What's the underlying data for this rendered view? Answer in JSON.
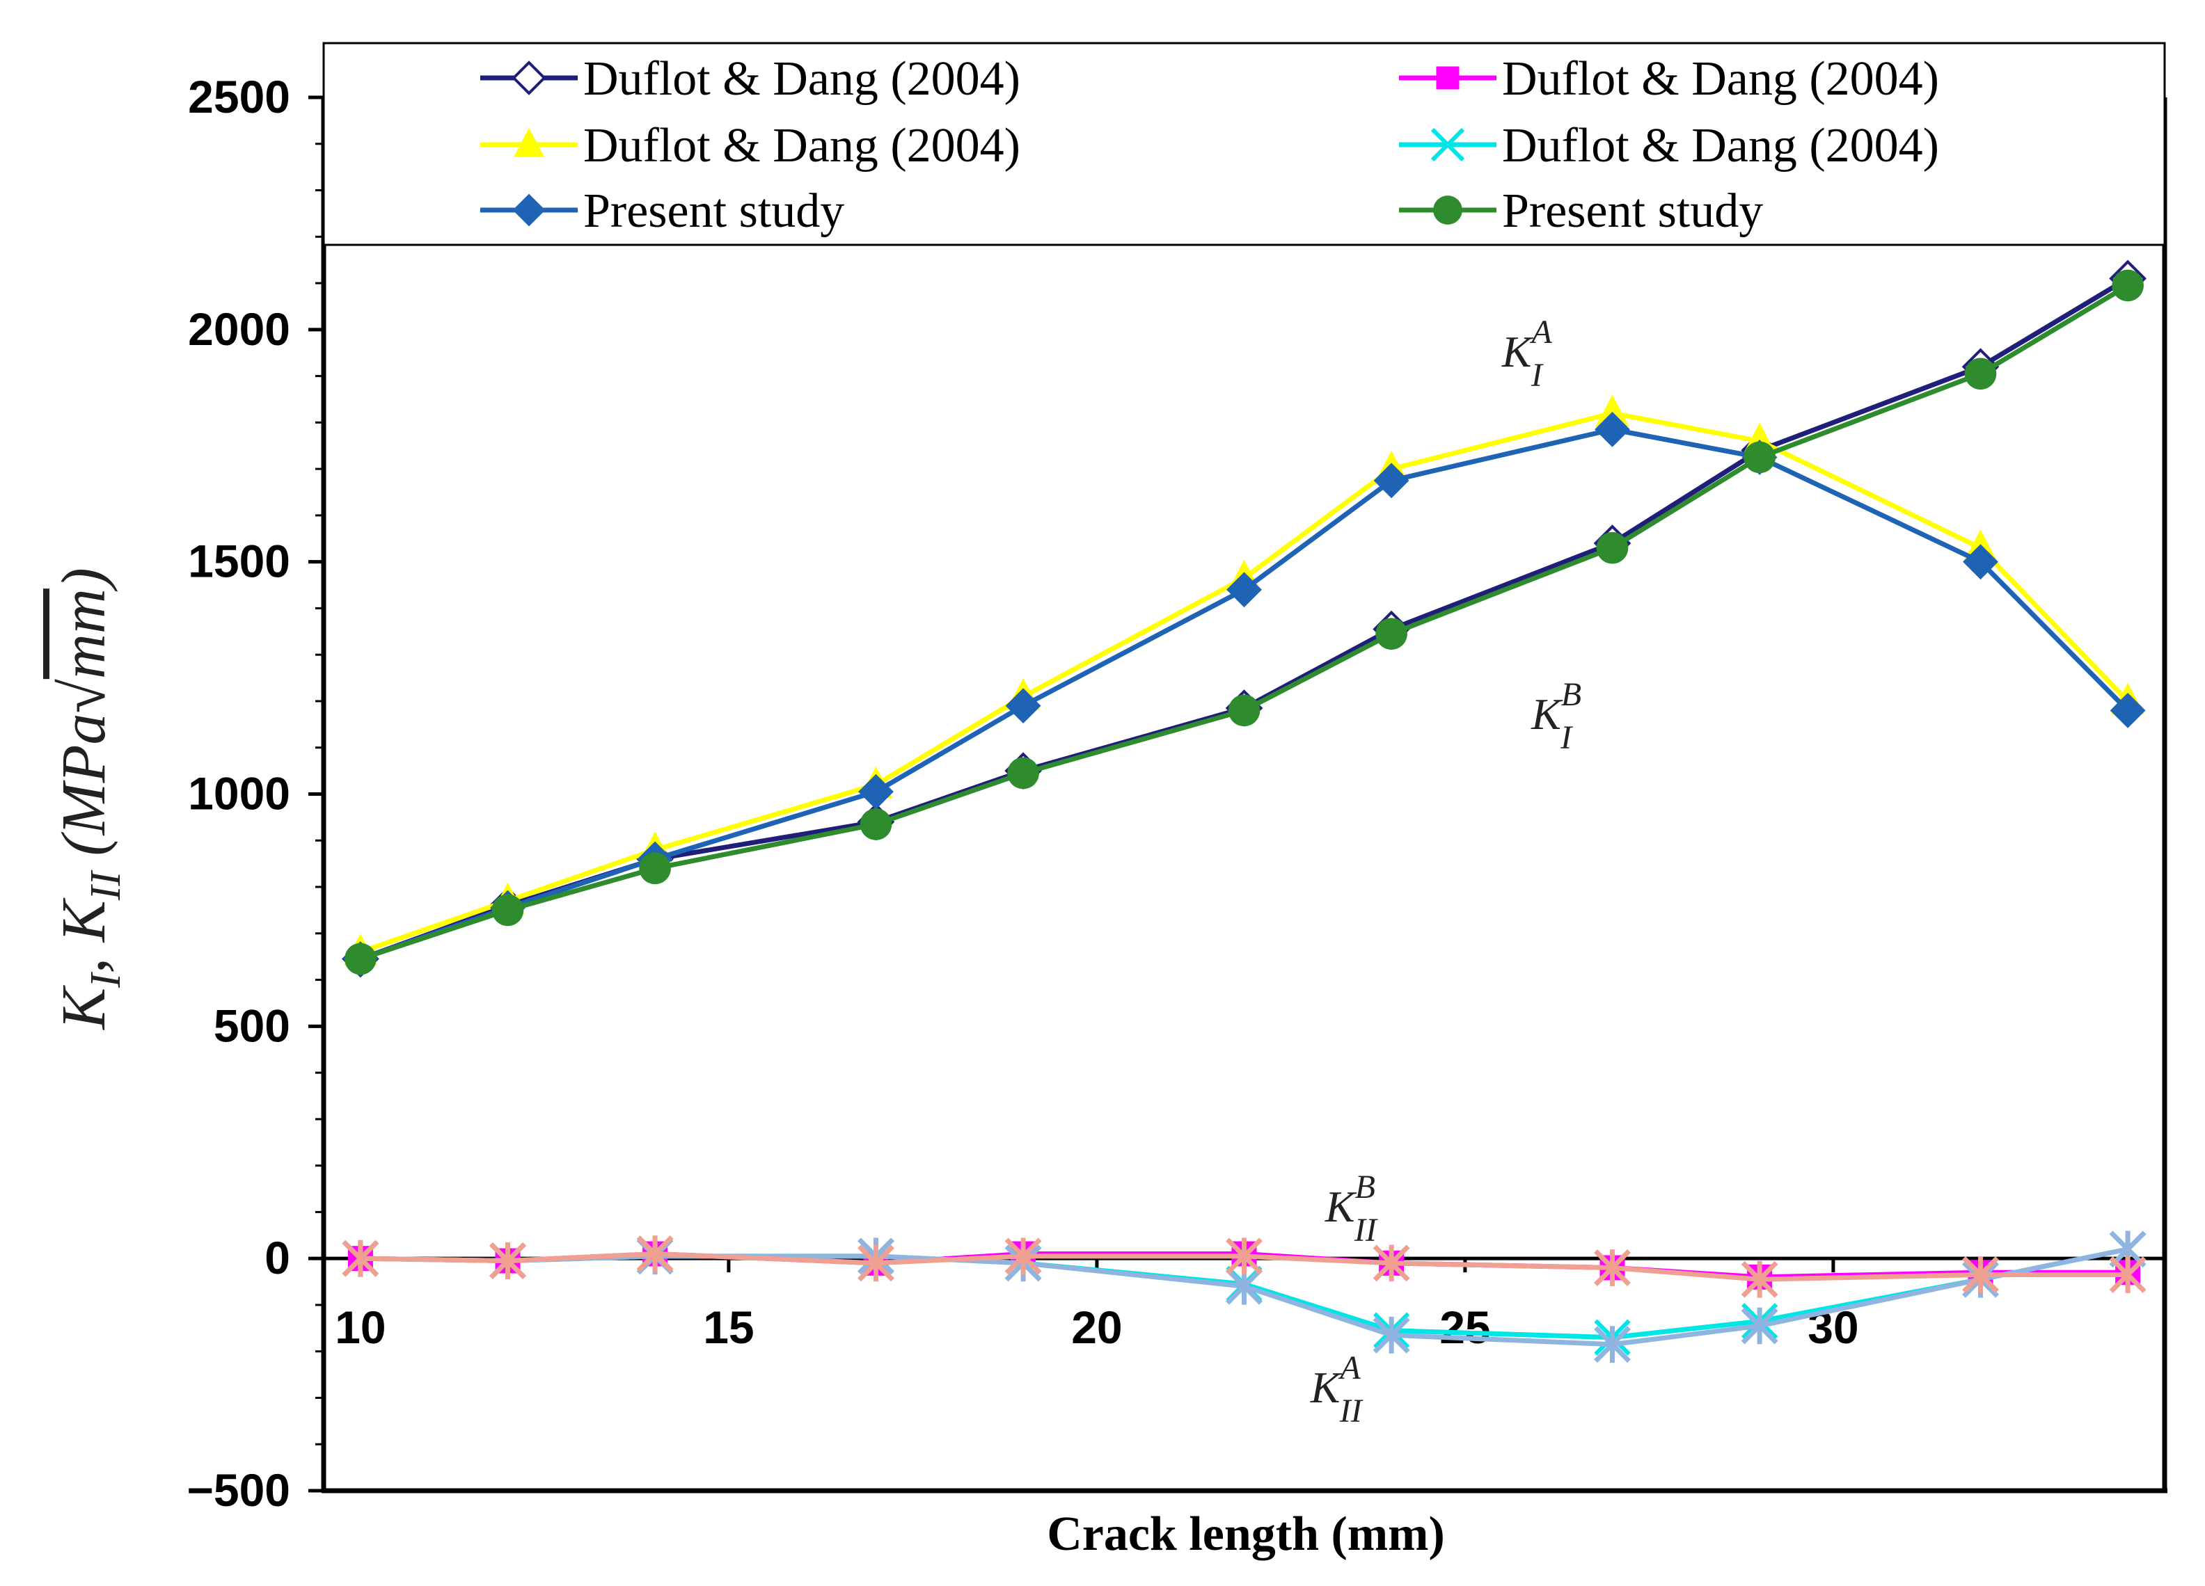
{
  "chart_data": {
    "type": "line",
    "xlabel": "Crack length (mm)",
    "ylabel": "K_I, K_II (MPa√mm)",
    "ylabel_parts": {
      "k1": "K",
      "s1": "I",
      "k2": "K",
      "s2": "II",
      "unit": "MPa",
      "unit_root": "mm"
    },
    "xlim": [
      9.5,
      34.5
    ],
    "ylim": [
      -500,
      2500
    ],
    "xticks": [
      10,
      15,
      20,
      25,
      30
    ],
    "yticks": [
      -500,
      0,
      500,
      1000,
      1500,
      2000,
      2500
    ],
    "ytick_labels": [
      "−500",
      "0",
      "500",
      "1000",
      "1500",
      "2000",
      "2500"
    ],
    "x": [
      10,
      12,
      14,
      17,
      19,
      22,
      24,
      27,
      29,
      32,
      34
    ],
    "series": [
      {
        "name": "Duflot & Dang (2004)",
        "group": "K_I^B",
        "color": "#1f1f7a",
        "marker": "diamond-open",
        "values": [
          645,
          760,
          860,
          940,
          1050,
          1185,
          1355,
          1540,
          1740,
          1920,
          2110
        ]
      },
      {
        "name": "Duflot & Dang (2004)",
        "group": "K_II^B",
        "color": "#ff00ff",
        "marker": "square",
        "values": [
          0,
          -5,
          10,
          -10,
          10,
          10,
          -10,
          -20,
          -40,
          -30,
          -30
        ]
      },
      {
        "name": "Duflot & Dang (2004)",
        "group": "K_I^A",
        "color": "#ffff00",
        "marker": "triangle",
        "values": [
          660,
          770,
          880,
          1020,
          1210,
          1465,
          1700,
          1820,
          1760,
          1530,
          1200
        ]
      },
      {
        "name": "Duflot & Dang (2004)",
        "group": "K_II^A",
        "color": "#00e5e5",
        "marker": "x",
        "values": [
          0,
          -5,
          5,
          5,
          -10,
          -55,
          -155,
          -170,
          -135,
          -45,
          20
        ]
      },
      {
        "name": "Present study",
        "group": "K_I^A",
        "color": "#1f64b4",
        "marker": "diamond",
        "values": [
          645,
          755,
          860,
          1005,
          1190,
          1440,
          1675,
          1785,
          1725,
          1500,
          1180
        ]
      },
      {
        "name": "Present study",
        "group": "K_I^B",
        "color": "#2e8b2e",
        "marker": "circle",
        "values": [
          645,
          750,
          840,
          935,
          1045,
          1180,
          1345,
          1530,
          1725,
          1905,
          2095
        ]
      },
      {
        "name": "",
        "group": "K_II^A",
        "color": "#8fb4e0",
        "marker": "star",
        "values": [
          0,
          -5,
          5,
          5,
          -10,
          -60,
          -165,
          -185,
          -145,
          -45,
          20
        ]
      },
      {
        "name": "",
        "group": "K_II^B",
        "color": "#f0a090",
        "marker": "star",
        "values": [
          0,
          -5,
          10,
          -10,
          5,
          5,
          -10,
          -20,
          -45,
          -35,
          -35
        ]
      }
    ],
    "legend": [
      "Duflot & Dang (2004)",
      "Duflot & Dang (2004)",
      "Duflot & Dang (2004)",
      "Duflot & Dang (2004)",
      "Present study",
      "Present study"
    ],
    "annotations": [
      {
        "base": "K",
        "sub": "I",
        "sup": "A",
        "x": 25.5,
        "y": 1920
      },
      {
        "base": "K",
        "sub": "I",
        "sup": "B",
        "x": 25.9,
        "y": 1140
      },
      {
        "base": "K",
        "sub": "II",
        "sup": "B",
        "x": 23.1,
        "y": 80
      },
      {
        "base": "K",
        "sub": "II",
        "sup": "A",
        "x": 22.9,
        "y": -310
      }
    ]
  }
}
